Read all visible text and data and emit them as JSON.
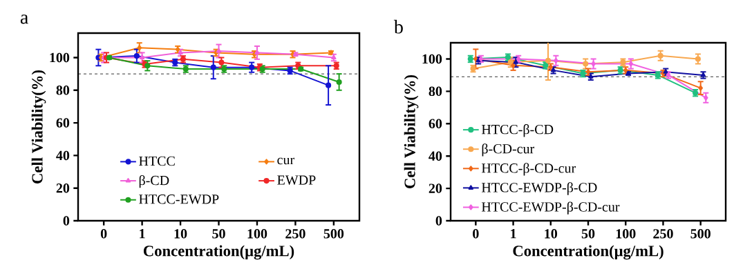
{
  "chart_data": [
    {
      "type": "line",
      "title": "a",
      "xlabel": "Concentration(μg/mL)",
      "ylabel": "Cell Viability(%)",
      "categories": [
        "0",
        "1",
        "10",
        "50",
        "100",
        "250",
        "500"
      ],
      "ylim": [
        0,
        115
      ],
      "yticks": [
        0,
        20,
        40,
        60,
        80,
        100
      ],
      "grid": false,
      "legend": "bottom",
      "ref_lines": [
        {
          "axis": "y",
          "value": 90,
          "line_style": "dashed",
          "color": "#000000"
        }
      ],
      "series": [
        {
          "name": "HTCC",
          "color": "#1414d2",
          "marker": "circle",
          "values": [
            100,
            101,
            97,
            94,
            94,
            92,
            83
          ],
          "errors": [
            5,
            4,
            2,
            7,
            3,
            2,
            12
          ]
        },
        {
          "name": "cur",
          "color": "#f57d10",
          "marker": "diamond",
          "values": [
            100,
            106,
            105,
            103,
            102,
            102,
            103
          ],
          "errors": [
            2,
            3,
            2,
            2,
            2,
            2,
            1
          ]
        },
        {
          "name": "β-CD",
          "color": "#f060d8",
          "marker": "triangle",
          "values": [
            100,
            100,
            103,
            104,
            103,
            102,
            100
          ],
          "errors": [
            3,
            3,
            2,
            4,
            4,
            1,
            2
          ]
        },
        {
          "name": "EWDP",
          "color": "#f02828",
          "marker": "circle",
          "values": [
            100,
            96,
            99,
            97,
            94,
            95,
            95
          ],
          "errors": [
            3,
            2,
            2,
            3,
            2,
            2,
            2
          ]
        },
        {
          "name": "HTCC-EWDP",
          "color": "#20a020",
          "marker": "circle",
          "values": [
            100,
            95,
            93,
            93,
            93,
            93,
            85
          ],
          "errors": [
            1,
            3,
            2,
            2,
            2,
            1,
            5
          ]
        }
      ]
    },
    {
      "type": "line",
      "title": "b",
      "xlabel": "Concentration(μg/mL)",
      "ylabel": "Cell Viability(%)",
      "categories": [
        "0",
        "1",
        "10",
        "50",
        "100",
        "250",
        "500"
      ],
      "ylim": [
        0,
        110
      ],
      "yticks": [
        0,
        20,
        40,
        60,
        80,
        100
      ],
      "grid": false,
      "legend": "bottom left",
      "ref_lines": [
        {
          "axis": "y",
          "value": 89,
          "line_style": "dashed",
          "color": "#000000"
        }
      ],
      "series": [
        {
          "name": "HTCC-β-CD",
          "color": "#20c080",
          "marker": "circle",
          "values": [
            100,
            101,
            96,
            91,
            93,
            90,
            79
          ],
          "errors": [
            2,
            2,
            2,
            2,
            2,
            2,
            2
          ]
        },
        {
          "name": "β-CD-cur",
          "color": "#f8a850",
          "marker": "circle",
          "values": [
            94,
            98,
            99,
            97,
            98,
            102,
            100
          ],
          "errors": [
            2,
            3,
            12,
            3,
            2,
            3,
            3
          ]
        },
        {
          "name": "HTCC-β-CD-cur",
          "color": "#f06818",
          "marker": "diamond",
          "values": [
            100,
            96,
            95,
            92,
            93,
            91,
            82
          ],
          "errors": [
            6,
            3,
            2,
            2,
            2,
            2,
            4
          ]
        },
        {
          "name": "HTCC-EWDP-β-CD",
          "color": "#1010a0",
          "marker": "triangle",
          "values": [
            99,
            98,
            93,
            89,
            91,
            92,
            90
          ],
          "errors": [
            2,
            3,
            2,
            2,
            1,
            2,
            2
          ]
        },
        {
          "name": "HTCC-EWDP-β-CD-cur",
          "color": "#f060e0",
          "marker": "diamond",
          "values": [
            100,
            100,
            99,
            97,
            97,
            90,
            76
          ],
          "errors": [
            2,
            2,
            3,
            3,
            3,
            2,
            3
          ]
        }
      ]
    }
  ]
}
